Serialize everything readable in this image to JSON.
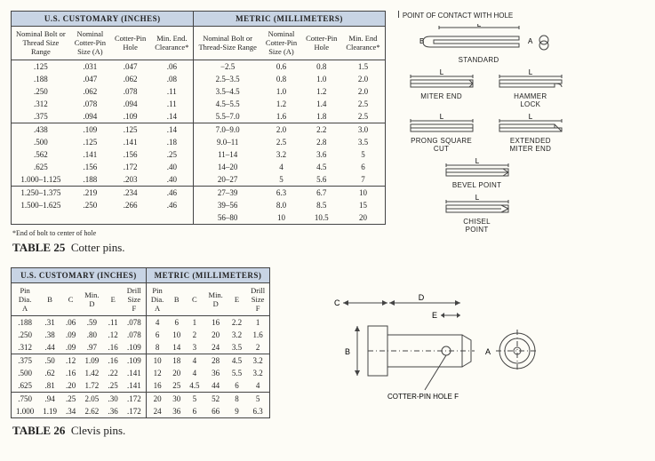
{
  "table25": {
    "caption_label": "TABLE 25",
    "caption_text": "Cotter pins.",
    "footnote": "*End of bolt to center of hole",
    "us_head": "U.S. CUSTOMARY (INCHES)",
    "metric_head": "METRIC (MILLIMETERS)",
    "cols_us": [
      "Nominal Bolt or\nThread Size\nRange",
      "Nominal\nCotter-Pin\nSize (A)",
      "Cotter-Pin\nHole",
      "Min. End.\nClearance*"
    ],
    "cols_m": [
      "Nominal Bolt or\nThread-Size Range",
      "Nominal\nCotter-Pin\nSize (A)",
      "Cotter-Pin\nHole",
      "Min. End\nClearance*"
    ],
    "groups": [
      [
        {
          "us": [
            ".125",
            ".031",
            ".047",
            ".06"
          ],
          "m": [
            "−2.5",
            "0.6",
            "0.8",
            "1.5"
          ]
        },
        {
          "us": [
            ".188",
            ".047",
            ".062",
            ".08"
          ],
          "m": [
            "2.5–3.5",
            "0.8",
            "1.0",
            "2.0"
          ]
        },
        {
          "us": [
            ".250",
            ".062",
            ".078",
            ".11"
          ],
          "m": [
            "3.5–4.5",
            "1.0",
            "1.2",
            "2.0"
          ]
        },
        {
          "us": [
            ".312",
            ".078",
            ".094",
            ".11"
          ],
          "m": [
            "4.5–5.5",
            "1.2",
            "1.4",
            "2.5"
          ]
        },
        {
          "us": [
            ".375",
            ".094",
            ".109",
            ".14"
          ],
          "m": [
            "5.5–7.0",
            "1.6",
            "1.8",
            "2.5"
          ]
        }
      ],
      [
        {
          "us": [
            ".438",
            ".109",
            ".125",
            ".14"
          ],
          "m": [
            "7.0–9.0",
            "2.0",
            "2.2",
            "3.0"
          ]
        },
        {
          "us": [
            ".500",
            ".125",
            ".141",
            ".18"
          ],
          "m": [
            "9.0–11",
            "2.5",
            "2.8",
            "3.5"
          ]
        },
        {
          "us": [
            ".562",
            ".141",
            ".156",
            ".25"
          ],
          "m": [
            "11–14",
            "3.2",
            "3.6",
            "5"
          ]
        },
        {
          "us": [
            ".625",
            ".156",
            ".172",
            ".40"
          ],
          "m": [
            "14–20",
            "4",
            "4.5",
            "6"
          ]
        },
        {
          "us": [
            "1.000–1.125",
            ".188",
            ".203",
            ".40"
          ],
          "m": [
            "20–27",
            "5",
            "5.6",
            "7"
          ]
        }
      ],
      [
        {
          "us": [
            "1.250–1.375",
            ".219",
            ".234",
            ".46"
          ],
          "m": [
            "27–39",
            "6.3",
            "6.7",
            "10"
          ]
        },
        {
          "us": [
            "1.500–1.625",
            ".250",
            ".266",
            ".46"
          ],
          "m": [
            "39–56",
            "8.0",
            "8.5",
            "15"
          ]
        },
        {
          "us": [
            "",
            "",
            "",
            ""
          ],
          "m": [
            "56–80",
            "10",
            "10.5",
            "20"
          ]
        }
      ]
    ]
  },
  "table26": {
    "caption_label": "TABLE 26",
    "caption_text": "Clevis pins.",
    "us_head": "U.S. CUSTOMARY (INCHES)",
    "metric_head": "METRIC (MILLIMETERS)",
    "cols": [
      "Pin\nDia.\nA",
      "B",
      "C",
      "Min.\nD",
      "E",
      "Drill\nSize\nF"
    ],
    "groups": [
      [
        {
          "us": [
            ".188",
            ".31",
            ".06",
            ".59",
            ".11",
            ".078"
          ],
          "m": [
            "4",
            "6",
            "1",
            "16",
            "2.2",
            "1"
          ]
        },
        {
          "us": [
            ".250",
            ".38",
            ".09",
            ".80",
            ".12",
            ".078"
          ],
          "m": [
            "6",
            "10",
            "2",
            "20",
            "3.2",
            "1.6"
          ]
        },
        {
          "us": [
            ".312",
            ".44",
            ".09",
            ".97",
            ".16",
            ".109"
          ],
          "m": [
            "8",
            "14",
            "3",
            "24",
            "3.5",
            "2"
          ]
        }
      ],
      [
        {
          "us": [
            ".375",
            ".50",
            ".12",
            "1.09",
            ".16",
            ".109"
          ],
          "m": [
            "10",
            "18",
            "4",
            "28",
            "4.5",
            "3.2"
          ]
        },
        {
          "us": [
            ".500",
            ".62",
            ".16",
            "1.42",
            ".22",
            ".141"
          ],
          "m": [
            "12",
            "20",
            "4",
            "36",
            "5.5",
            "3.2"
          ]
        },
        {
          "us": [
            ".625",
            ".81",
            ".20",
            "1.72",
            ".25",
            ".141"
          ],
          "m": [
            "16",
            "25",
            "4.5",
            "44",
            "6",
            "4"
          ]
        }
      ],
      [
        {
          "us": [
            ".750",
            ".94",
            ".25",
            "2.05",
            ".30",
            ".172"
          ],
          "m": [
            "20",
            "30",
            "5",
            "52",
            "8",
            "5"
          ]
        },
        {
          "us": [
            "1.000",
            "1.19",
            ".34",
            "2.62",
            ".36",
            ".172"
          ],
          "m": [
            "24",
            "36",
            "6",
            "66",
            "9",
            "6.3"
          ]
        }
      ]
    ]
  },
  "illus1": {
    "note_contact": "POINT OF CONTACT WITH HOLE",
    "standard": "STANDARD",
    "miter_end": "MITER END",
    "hammer_lock": "HAMMER\nLOCK",
    "prong_square": "PRONG SQUARE\nCUT",
    "extended_miter": "EXTENDED\nMITER END",
    "bevel_point": "BEVEL POINT",
    "chisel_point": "CHISEL\nPOINT",
    "L": "L",
    "A": "A",
    "B": "B"
  },
  "illus2": {
    "labels": {
      "A": "A",
      "B": "B",
      "C": "C",
      "D": "D",
      "E": "E"
    },
    "note": "COTTER-PIN HOLE F"
  },
  "colors": {
    "header_bg": "#c8d4e4",
    "line": "#444444",
    "page_bg": "#fdfcf6"
  }
}
